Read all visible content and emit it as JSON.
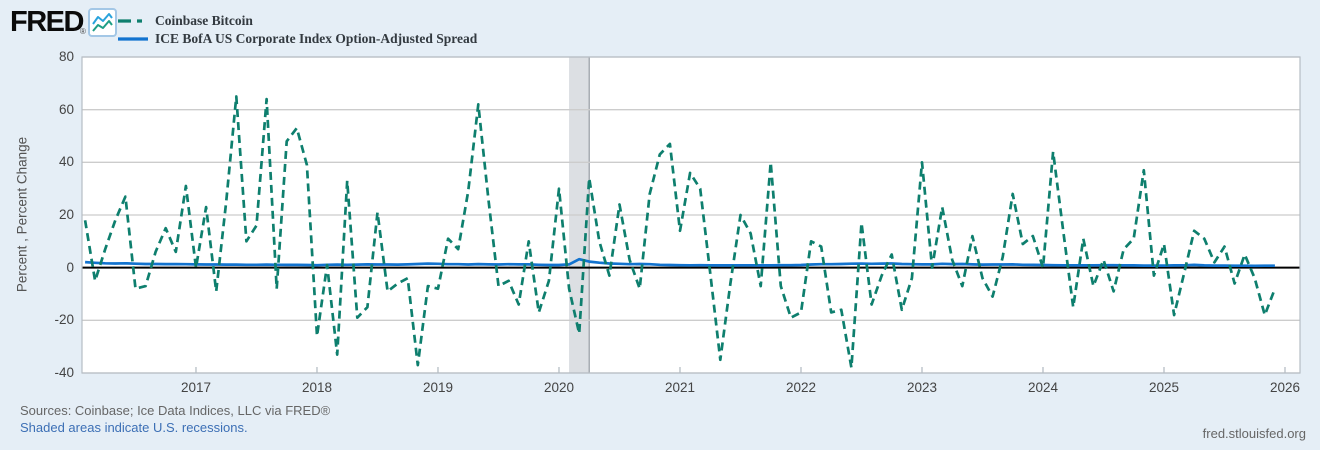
{
  "header": {
    "logo_text": "FRED",
    "registered_mark": "®"
  },
  "chart_data": {
    "type": "line",
    "ylabel": "Percent , Percent Change",
    "x_ticks": [
      "2017",
      "2018",
      "2019",
      "2020",
      "2021",
      "2022",
      "2023",
      "2024",
      "2025",
      "2026"
    ],
    "y_ticks": [
      80,
      60,
      40,
      20,
      0,
      -20,
      -40
    ],
    "ylim": [
      -40,
      80
    ],
    "xlim_years": [
      2016.058,
      2026.124
    ],
    "grid": "horizontal",
    "zero_line": true,
    "legend_position": "top-left",
    "recession_band": {
      "start_year": 2020.083,
      "end_year": 2020.25,
      "meaning": "U.S. recession"
    },
    "series": [
      {
        "name": "Coinbase Bitcoin",
        "style": "dashed",
        "color": "#0e7f6e",
        "unit": "Percent Change",
        "frequency": "monthly",
        "start": "2016-02",
        "values": [
          18,
          -5,
          7,
          18,
          27,
          -8,
          -7,
          6,
          15,
          6,
          31,
          0,
          23,
          -9,
          25,
          65,
          10,
          16,
          64,
          -8,
          48,
          53,
          39,
          -26,
          1,
          -33,
          33,
          -19,
          -15,
          21,
          -9,
          -6,
          -4,
          -37,
          -7,
          -8,
          11,
          7,
          29,
          62,
          26,
          -7,
          -5,
          -14,
          10,
          -17,
          -5,
          30,
          -8,
          -25,
          34,
          10,
          -3,
          24,
          3,
          -8,
          28,
          43,
          47,
          14,
          36,
          30,
          -2,
          -35,
          -6,
          20,
          13,
          -7,
          40,
          -7,
          -19,
          -17,
          10,
          8,
          -17,
          -16,
          -38,
          17,
          -14,
          -3,
          5,
          -16,
          -4,
          40,
          0,
          23,
          3,
          -7,
          12,
          -4,
          -11,
          4,
          28,
          9,
          12,
          0,
          44,
          14,
          -15,
          11,
          -7,
          3,
          -9,
          7,
          11,
          37,
          -3,
          9,
          -18,
          -2,
          14,
          11,
          2,
          8,
          -6,
          5,
          -4,
          -18,
          -8
        ]
      },
      {
        "name": "ICE BofA US Corporate Index Option-Adjusted Spread",
        "style": "solid",
        "color": "#1273cf",
        "unit": "Percent",
        "frequency": "monthly",
        "start": "2016-02",
        "values": [
          2.1,
          1.85,
          1.65,
          1.6,
          1.65,
          1.5,
          1.4,
          1.4,
          1.35,
          1.35,
          1.3,
          1.25,
          1.2,
          1.2,
          1.15,
          1.15,
          1.1,
          1.1,
          1.15,
          1.1,
          1.05,
          1.05,
          1.0,
          0.95,
          1.1,
          1.15,
          1.1,
          1.15,
          1.25,
          1.2,
          1.2,
          1.15,
          1.25,
          1.4,
          1.55,
          1.45,
          1.3,
          1.3,
          1.2,
          1.35,
          1.25,
          1.2,
          1.3,
          1.25,
          1.25,
          1.1,
          1.0,
          1.0,
          1.25,
          3.2,
          2.3,
          1.9,
          1.6,
          1.45,
          1.3,
          1.4,
          1.3,
          1.1,
          1.0,
          0.95,
          0.9,
          0.95,
          0.9,
          0.85,
          0.85,
          0.9,
          0.9,
          0.85,
          0.85,
          0.95,
          0.95,
          1.0,
          1.2,
          1.3,
          1.3,
          1.4,
          1.5,
          1.55,
          1.45,
          1.55,
          1.6,
          1.4,
          1.3,
          1.25,
          1.25,
          1.45,
          1.35,
          1.4,
          1.25,
          1.15,
          1.2,
          1.2,
          1.25,
          1.1,
          1.05,
          1.0,
          0.95,
          0.9,
          0.9,
          0.85,
          0.9,
          0.95,
          0.95,
          0.9,
          0.85,
          0.8,
          0.8,
          0.8,
          0.85,
          0.9,
          1.05,
          0.85,
          0.8,
          0.78,
          0.76,
          0.74,
          0.72,
          0.75,
          0.73
        ]
      }
    ]
  },
  "colors": {
    "background": "#e5eef6",
    "plot_bg": "#ffffff",
    "grid": "#cccccc",
    "plot_border": "#b6bdc4",
    "zero_line": "#000000",
    "band_fill": "#dcdfe3",
    "band_edge": "#a8adb3",
    "tick_mark": "#b0b8c0",
    "axis_text": "#444444",
    "link": "#3c6fb5"
  },
  "footer": {
    "sources": "Sources: Coinbase; Ice Data Indices, LLC via FRED®",
    "recession_note": "Shaded areas indicate U.S. recessions.",
    "site": "fred.stlouisfed.org"
  }
}
